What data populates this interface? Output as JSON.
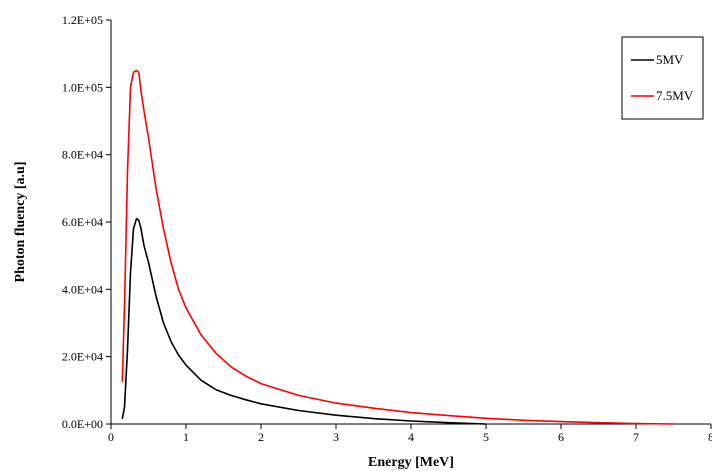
{
  "chart_data": {
    "type": "line",
    "title": "",
    "xlabel": "Energy [MeV]",
    "ylabel": "Photon fluency [a.u]",
    "xlim": [
      0,
      8
    ],
    "ylim": [
      0,
      120000
    ],
    "x_ticks": [
      "0",
      "1",
      "2",
      "3",
      "4",
      "5",
      "6",
      "7",
      "8"
    ],
    "y_ticks": [
      "0.0E+00",
      "2.0E+04",
      "4.0E+04",
      "6.0E+04",
      "8.0E+04",
      "1.0E+05",
      "1.2E+05"
    ],
    "grid": false,
    "legend_position": "top-right",
    "series": [
      {
        "name": "5MV",
        "color": "#000000",
        "x": [
          0.15,
          0.18,
          0.22,
          0.26,
          0.3,
          0.34,
          0.37,
          0.4,
          0.44,
          0.5,
          0.6,
          0.7,
          0.8,
          0.9,
          1.0,
          1.2,
          1.4,
          1.6,
          1.8,
          2.0,
          2.5,
          3.0,
          3.5,
          4.0,
          4.5,
          5.0
        ],
        "y": [
          1500,
          5000,
          22000,
          45000,
          58000,
          61000,
          60500,
          58000,
          53000,
          48000,
          38000,
          30000,
          24500,
          20500,
          17500,
          13000,
          10200,
          8500,
          7200,
          6000,
          4000,
          2600,
          1600,
          900,
          400,
          0
        ]
      },
      {
        "name": "7.5MV",
        "color": "#ff0000",
        "x": [
          0.15,
          0.18,
          0.22,
          0.26,
          0.3,
          0.34,
          0.37,
          0.4,
          0.44,
          0.5,
          0.6,
          0.7,
          0.8,
          0.9,
          1.0,
          1.2,
          1.4,
          1.6,
          1.8,
          2.0,
          2.5,
          3.0,
          3.5,
          4.0,
          4.5,
          5.0,
          5.5,
          6.0,
          6.5,
          7.0,
          7.5
        ],
        "y": [
          12500,
          35000,
          75000,
          100000,
          104500,
          105000,
          104500,
          99000,
          93000,
          85000,
          70000,
          58000,
          48000,
          40000,
          34500,
          26500,
          21000,
          17000,
          14200,
          12000,
          8500,
          6200,
          4700,
          3400,
          2500,
          1700,
          1100,
          700,
          400,
          150,
          0
        ]
      }
    ]
  }
}
